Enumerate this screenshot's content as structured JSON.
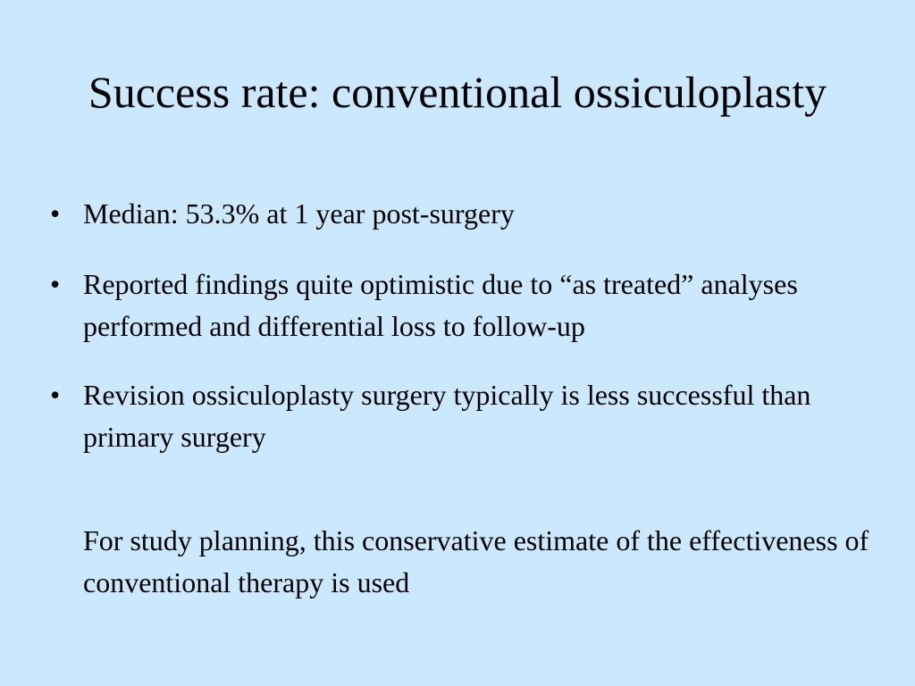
{
  "slide": {
    "title": "Success rate: conventional ossiculoplasty",
    "bullet_symbol": "•",
    "bullets": [
      {
        "text": "Median: 53.3% at 1 year post-surgery"
      },
      {
        "text": "Reported findings quite optimistic due to “as treated” analyses performed and differential loss to follow-up"
      },
      {
        "text": "Revision ossiculoplasty surgery typically is less successful than primary surgery"
      }
    ],
    "note": "For study planning, this conservative estimate of the effectiveness of conventional therapy is used"
  },
  "colors": {
    "background": "#CCE8FF",
    "text": "#000000"
  }
}
